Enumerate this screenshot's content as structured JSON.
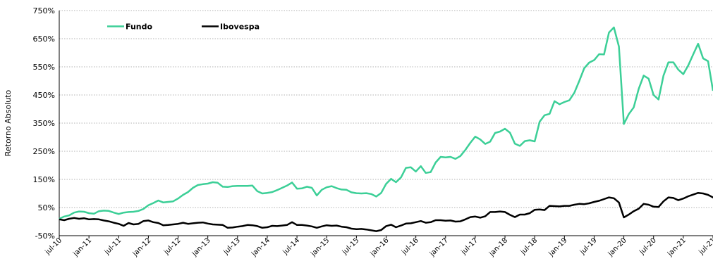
{
  "chart_data": {
    "type": "line",
    "ylabel": "Retorno Absoluto",
    "ylim": [
      -50,
      750
    ],
    "y_ticks": [
      "750%",
      "650%",
      "550%",
      "450%",
      "350%",
      "250%",
      "150%",
      "50%",
      "-50%"
    ],
    "y_tick_values": [
      750,
      650,
      550,
      450,
      350,
      250,
      150,
      50,
      -50
    ],
    "grid": "horizontal dotted",
    "legend_position": "top-left",
    "x_tick_labels": [
      "jul-10",
      "jan-11",
      "jul-11",
      "jan-12",
      "jul-12",
      "jan-13",
      "jul-13",
      "jan-14",
      "jul-14",
      "jan-15",
      "jul-15",
      "jan-16",
      "jul-16",
      "jan-17",
      "jul-17",
      "jan-18",
      "jul-18",
      "jan-19",
      "jul-19",
      "jan-20",
      "jul-20",
      "jan-21",
      "jul-21"
    ],
    "series": [
      {
        "name": "Fundo",
        "color": "#3CCF97",
        "values": [
          10,
          18,
          22,
          32,
          36,
          35,
          30,
          28,
          37,
          39,
          38,
          32,
          27,
          32,
          34,
          35,
          38,
          45,
          58,
          66,
          75,
          68,
          70,
          72,
          82,
          95,
          105,
          120,
          130,
          133,
          135,
          140,
          138,
          124,
          123,
          126,
          127,
          127,
          127,
          128,
          108,
          100,
          102,
          105,
          112,
          120,
          128,
          139,
          117,
          118,
          124,
          120,
          93,
          113,
          122,
          126,
          119,
          114,
          113,
          104,
          101,
          100,
          101,
          98,
          89,
          102,
          134,
          152,
          140,
          157,
          191,
          193,
          178,
          197,
          173,
          176,
          210,
          230,
          228,
          230,
          223,
          233,
          255,
          280,
          302,
          292,
          276,
          284,
          315,
          320,
          330,
          316,
          277,
          269,
          286,
          289,
          285,
          355,
          378,
          383,
          428,
          417,
          425,
          431,
          458,
          500,
          545,
          565,
          574,
          595,
          594,
          672,
          690,
          622,
          347,
          382,
          406,
          472,
          519,
          508,
          450,
          434,
          519,
          566,
          566,
          540,
          524,
          555,
          594,
          632,
          580,
          570,
          465
        ]
      },
      {
        "name": "Ibovespa",
        "color": "#000000",
        "values": [
          8,
          5,
          10,
          13,
          10,
          12,
          8,
          9,
          8,
          4,
          1,
          -4,
          -8,
          -15,
          -5,
          -10,
          -8,
          2,
          4,
          -2,
          -5,
          -13,
          -12,
          -10,
          -8,
          -4,
          -8,
          -6,
          -4,
          -3,
          -7,
          -10,
          -11,
          -12,
          -22,
          -21,
          -18,
          -16,
          -12,
          -13,
          -16,
          -22,
          -20,
          -15,
          -16,
          -14,
          -12,
          -2,
          -12,
          -12,
          -14,
          -17,
          -22,
          -17,
          -13,
          -15,
          -14,
          -18,
          -20,
          -25,
          -27,
          -26,
          -28,
          -31,
          -34,
          -30,
          -16,
          -11,
          -20,
          -14,
          -7,
          -6,
          -2,
          2,
          -4,
          -2,
          5,
          5,
          3,
          4,
          0,
          1,
          8,
          16,
          18,
          14,
          19,
          34,
          34,
          36,
          34,
          24,
          16,
          25,
          25,
          30,
          42,
          43,
          41,
          56,
          55,
          54,
          56,
          56,
          60,
          63,
          62,
          65,
          70,
          74,
          80,
          86,
          83,
          68,
          15,
          25,
          37,
          46,
          63,
          60,
          53,
          52,
          72,
          86,
          84,
          76,
          82,
          90,
          96,
          102,
          100,
          95,
          86,
          73
        ]
      }
    ]
  }
}
